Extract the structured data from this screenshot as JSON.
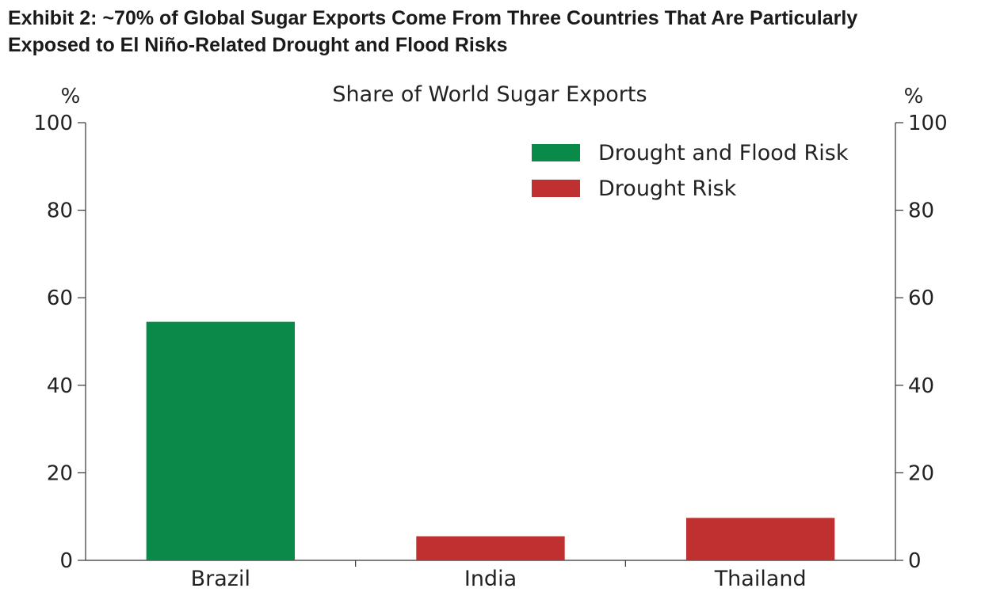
{
  "exhibit": {
    "title_line1": "Exhibit 2: ~70% of Global Sugar Exports Come From Three Countries That Are Particularly",
    "title_line2": "Exposed to El Niño-Related Drought and Flood Risks"
  },
  "chart_data": {
    "type": "bar",
    "title": "Share of World Sugar Exports",
    "ylabel_left": "%",
    "ylabel_right": "%",
    "categories": [
      "Brazil",
      "India",
      "Thailand"
    ],
    "values": [
      54.5,
      5.5,
      9.7
    ],
    "bar_series": [
      "Drought and Flood Risk",
      "Drought Risk",
      "Drought Risk"
    ],
    "series": [
      {
        "name": "Drought and Flood Risk",
        "color": "#0a8a48"
      },
      {
        "name": "Drought Risk",
        "color": "#c13030"
      }
    ],
    "ylim": [
      0,
      100
    ],
    "yticks": [
      0,
      20,
      40,
      60,
      80,
      100
    ],
    "grid": false,
    "legend_position": "top-right"
  }
}
